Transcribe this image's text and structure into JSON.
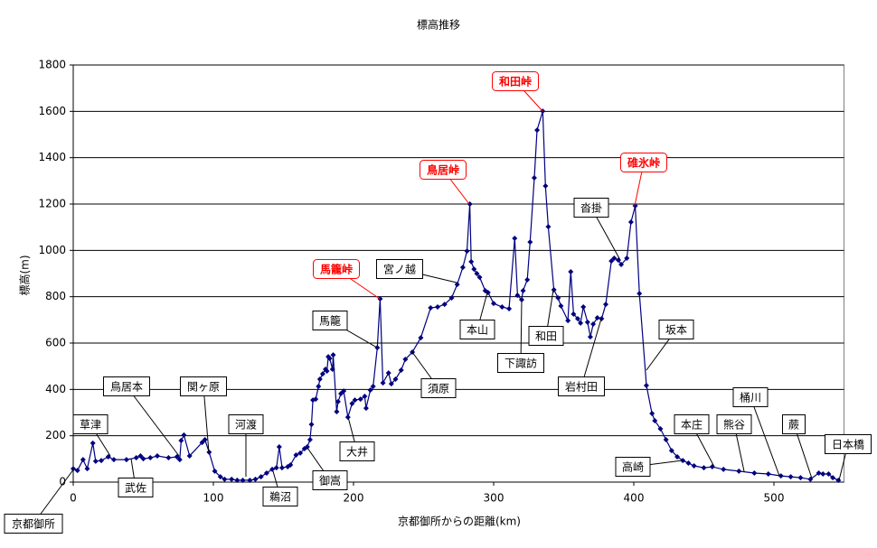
{
  "chart_data": {
    "type": "line",
    "title": "標高推移",
    "xlabel": "京都御所からの距離(km)",
    "ylabel": "標高(m)",
    "xlim": [
      0,
      550
    ],
    "ylim": [
      0,
      1800
    ],
    "xticks": [
      0,
      100,
      200,
      300,
      400,
      500
    ],
    "yticks": [
      0,
      200,
      400,
      600,
      800,
      1000,
      1200,
      1400,
      1600,
      1800
    ],
    "grid": true,
    "series": [
      {
        "name": "標高",
        "color": "#000080",
        "x": [
          0,
          3,
          7,
          10,
          14,
          16,
          20,
          25,
          29,
          38,
          45,
          48,
          50,
          55,
          60,
          68,
          74,
          76,
          77,
          79,
          83,
          92,
          94,
          97,
          101,
          105,
          108,
          113,
          117,
          121,
          126,
          130,
          134,
          138,
          142,
          145,
          147,
          149,
          153,
          155,
          159,
          162,
          165,
          167,
          169,
          170,
          171,
          173,
          175,
          176,
          178,
          180,
          181,
          182,
          183,
          185,
          185.5,
          188,
          189,
          191,
          193,
          196,
          199,
          201,
          205,
          208,
          209,
          212,
          214,
          217,
          219,
          221,
          225,
          227,
          230,
          234,
          237,
          242,
          248,
          255,
          260,
          265,
          270,
          274,
          278,
          281,
          283,
          284,
          286,
          288,
          290,
          294,
          296,
          300,
          306,
          311,
          315,
          317,
          320,
          321,
          324,
          326,
          329,
          331,
          335,
          337,
          339,
          343,
          346,
          348,
          353,
          355,
          357,
          360,
          362,
          364,
          367,
          369,
          371,
          374,
          377,
          380,
          384,
          386,
          389,
          391,
          395,
          398,
          401,
          404,
          409,
          413,
          415,
          419,
          423,
          427,
          431,
          435,
          439,
          443,
          450,
          456,
          464,
          475,
          486,
          496,
          505,
          512,
          519,
          526,
          532,
          535,
          539,
          542,
          546
        ],
        "values": [
          58,
          50,
          97,
          58,
          168,
          90,
          93,
          109,
          97,
          97,
          105,
          113,
          101,
          105,
          113,
          105,
          109,
          97,
          179,
          203,
          113,
          171,
          183,
          129,
          47,
          23,
          12,
          12,
          8,
          8,
          8,
          12,
          23,
          39,
          55,
          62,
          152,
          62,
          66,
          74,
          117,
          125,
          144,
          152,
          183,
          249,
          354,
          358,
          413,
          444,
          467,
          487,
          479,
          541,
          534,
          487,
          549,
          304,
          347,
          382,
          393,
          280,
          339,
          354,
          358,
          370,
          319,
          397,
          413,
          580,
          791,
          428,
          471,
          424,
          444,
          483,
          530,
          561,
          623,
          752,
          756,
          767,
          795,
          853,
          927,
          997,
          1200,
          951,
          919,
          900,
          884,
          826,
          818,
          771,
          756,
          748,
          1052,
          806,
          787,
          826,
          873,
          1036,
          1313,
          1519,
          1601,
          1278,
          1102,
          830,
          795,
          760,
          697,
          908,
          725,
          705,
          686,
          756,
          690,
          627,
          682,
          709,
          705,
          767,
          954,
          966,
          958,
          939,
          966,
          1122,
          1192,
          814,
          417,
          296,
          265,
          230,
          183,
          136,
          109,
          93,
          82,
          70,
          62,
          66,
          55,
          47,
          39,
          35,
          27,
          23,
          19,
          12,
          39,
          35,
          35,
          19,
          8
        ]
      }
    ],
    "annotations": [
      {
        "text": "京都御所",
        "color": "#000000"
      },
      {
        "text": "草津",
        "color": "#000000"
      },
      {
        "text": "鳥居本",
        "color": "#000000"
      },
      {
        "text": "武佐",
        "color": "#000000"
      },
      {
        "text": "関ヶ原",
        "color": "#000000"
      },
      {
        "text": "河渡",
        "color": "#000000"
      },
      {
        "text": "鵜沼",
        "color": "#000000"
      },
      {
        "text": "御嵩",
        "color": "#000000"
      },
      {
        "text": "大井",
        "color": "#000000"
      },
      {
        "text": "馬籠",
        "color": "#000000"
      },
      {
        "text": "馬籠峠",
        "color": "#ff0000"
      },
      {
        "text": "宮ノ越",
        "color": "#000000"
      },
      {
        "text": "鳥居峠",
        "color": "#ff0000"
      },
      {
        "text": "和田峠",
        "color": "#ff0000"
      },
      {
        "text": "須原",
        "color": "#000000"
      },
      {
        "text": "本山",
        "color": "#000000"
      },
      {
        "text": "下諏訪",
        "color": "#000000"
      },
      {
        "text": "和田",
        "color": "#000000"
      },
      {
        "text": "岩村田",
        "color": "#000000"
      },
      {
        "text": "沓掛",
        "color": "#000000"
      },
      {
        "text": "碓氷峠",
        "color": "#ff0000"
      },
      {
        "text": "坂本",
        "color": "#000000"
      },
      {
        "text": "本庄",
        "color": "#000000"
      },
      {
        "text": "高崎",
        "color": "#000000"
      },
      {
        "text": "熊谷",
        "color": "#000000"
      },
      {
        "text": "桶川",
        "color": "#000000"
      },
      {
        "text": "蕨",
        "color": "#000000"
      },
      {
        "text": "日本橋",
        "color": "#000000"
      }
    ]
  }
}
